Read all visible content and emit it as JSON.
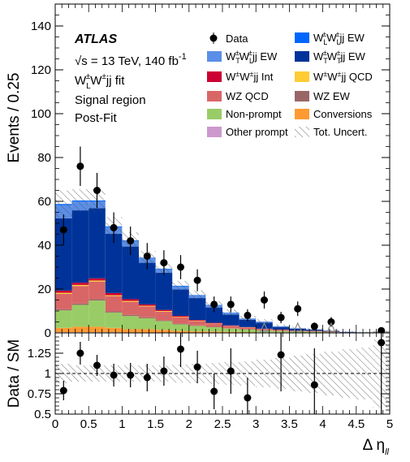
{
  "chart_data": [
    {
      "type": "bar",
      "stacked": true,
      "panel": "main",
      "ylabel": "Events / 0.25",
      "xlim": [
        0,
        5
      ],
      "ylim": [
        0,
        150
      ],
      "y_ticks": [
        0,
        20,
        40,
        60,
        80,
        100,
        120,
        140
      ],
      "bin_edges": [
        0,
        0.25,
        0.5,
        0.75,
        1.0,
        1.25,
        1.5,
        1.75,
        2.0,
        2.25,
        2.5,
        2.75,
        3.0,
        3.25,
        3.5,
        3.75,
        4.0,
        4.25,
        4.5,
        4.75,
        5.0
      ],
      "series": [
        {
          "name": "Other prompt",
          "color": "#cc99cc",
          "values": [
            0.3,
            0.3,
            0.3,
            0.3,
            0.2,
            0.2,
            0.2,
            0.1,
            0.1,
            0.1,
            0.1,
            0.05,
            0.05,
            0.05,
            0.05,
            0.05,
            0,
            0,
            0,
            0.1
          ]
        },
        {
          "name": "Conversions",
          "color": "#ff9a33",
          "values": [
            2,
            2.5,
            2.5,
            2,
            1.5,
            1.5,
            1.2,
            0.8,
            0.6,
            0.5,
            0.4,
            0.3,
            0.2,
            0.2,
            0.1,
            0.1,
            0.1,
            0.05,
            0,
            0.1
          ]
        },
        {
          "name": "Non-prompt",
          "color": "#99cc66",
          "values": [
            8,
            10,
            12,
            7,
            6,
            5,
            4,
            3,
            2.5,
            2,
            1.5,
            1.2,
            0.8,
            0.6,
            0.4,
            0.4,
            0.2,
            0.1,
            0.1,
            0.2
          ]
        },
        {
          "name": "WZ EW",
          "color": "#996666",
          "values": [
            0.5,
            0.6,
            0.6,
            0.5,
            0.5,
            0.4,
            0.3,
            0.3,
            0.2,
            0.2,
            0.1,
            0.1,
            0.1,
            0.1,
            0.1,
            0.05,
            0.05,
            0,
            0,
            0
          ]
        },
        {
          "name": "WZ QCD",
          "color": "#d96666",
          "values": [
            7,
            8,
            8,
            7,
            6,
            5,
            4,
            3,
            2,
            1.5,
            1,
            0.8,
            0.6,
            0.4,
            0.3,
            0.3,
            0.2,
            0.1,
            0.1,
            0.1
          ]
        },
        {
          "name": "W±W±jj QCD",
          "color": "#ffcc33",
          "values": [
            0.5,
            0.5,
            0.5,
            0.4,
            0.4,
            0.3,
            0.3,
            0.2,
            0.2,
            0.1,
            0.1,
            0.1,
            0.05,
            0.05,
            0.05,
            0,
            0,
            0,
            0,
            0
          ]
        },
        {
          "name": "W±W±jj Int",
          "color": "#cc0033",
          "values": [
            1,
            1,
            1,
            1,
            0.8,
            0.6,
            0.5,
            0.4,
            0.3,
            0.2,
            0.2,
            0.1,
            0.1,
            0.1,
            0.05,
            0.05,
            0.05,
            0,
            0,
            0
          ]
        },
        {
          "name": "WT±WT±jj EW",
          "color": "#003399",
          "values": [
            33,
            33,
            32,
            27,
            24,
            19,
            17,
            12,
            10,
            7,
            5,
            3.3,
            2.8,
            1.2,
            0.8,
            0.5,
            0.3,
            0.2,
            0.05,
            0.1
          ]
        },
        {
          "name": "WL±WT±jj EW",
          "color": "#5a8ee8",
          "values": [
            6,
            4,
            3,
            3,
            2.5,
            2,
            1.6,
            1.5,
            1.3,
            1.1,
            0.8,
            0.6,
            0.4,
            0.3,
            0.2,
            0.15,
            0.1,
            0.05,
            0,
            0
          ]
        },
        {
          "name": "WL±WL±jj EW",
          "color": "#0066ff",
          "values": [
            0.5,
            0.5,
            0.5,
            0.4,
            0.3,
            0.3,
            0.2,
            0.2,
            0.1,
            0.1,
            0.1,
            0.05,
            0.05,
            0.05,
            0.05,
            0,
            0,
            0,
            0,
            0
          ]
        }
      ],
      "data_points": {
        "name": "Data",
        "x": [
          0.125,
          0.375,
          0.625,
          0.875,
          1.125,
          1.375,
          1.625,
          1.875,
          2.125,
          2.375,
          2.625,
          2.875,
          3.125,
          3.375,
          3.625,
          3.875,
          4.125,
          4.875
        ],
        "y": [
          47,
          76,
          65,
          48,
          42,
          35,
          32,
          30,
          24,
          13,
          13,
          8,
          15,
          7,
          11,
          3,
          5,
          1
        ],
        "yerr": [
          7,
          9,
          8,
          7,
          6.5,
          6,
          5.7,
          5.5,
          5,
          3.6,
          3.6,
          2.8,
          3.9,
          2.6,
          3.3,
          1.7,
          2.2,
          1
        ]
      },
      "arrows_x": [
        3.125,
        3.625,
        4.125
      ],
      "legend_title": "Data",
      "uncertainty_label": "Tot. Uncert.",
      "uncertainty_frac": [
        0.1,
        0.08,
        0.08,
        0.08,
        0.08,
        0.08,
        0.08,
        0.09,
        0.1,
        0.11,
        0.12,
        0.13,
        0.15,
        0.17,
        0.2,
        0.22,
        0.25,
        0.28,
        0.3,
        0.4
      ],
      "annotations": {
        "experiment": "ATLAS",
        "energy_prefix": "√s = 13 TeV, 140 fb",
        "energy_sup": "-1",
        "fit_W1": "W",
        "fit_sub1": "L",
        "fit_sup1": "±",
        "fit_W2": "W",
        "fit_sup2": "±",
        "fit_rest": "jj fit",
        "region": "Signal region",
        "status": "Post-Fit"
      }
    },
    {
      "type": "scatter",
      "panel": "ratio",
      "ylabel": "Data / SM",
      "xlabel": "Δ η",
      "xlabel_sub": "ll",
      "xlim": [
        0,
        5
      ],
      "ylim": [
        0.5,
        1.5
      ],
      "y_ticks": [
        0.5,
        0.75,
        1,
        1.25
      ],
      "y_tick_labels": [
        "0.5",
        "0.75",
        "1",
        "1.25"
      ],
      "x_ticks": [
        0,
        0.5,
        1,
        1.5,
        2,
        2.5,
        3,
        3.5,
        4,
        4.5,
        5
      ],
      "x_tick_labels": [
        "0",
        "0.5",
        "1",
        "1.5",
        "2",
        "2.5",
        "3",
        "3.5",
        "4",
        "4.5",
        "5"
      ],
      "x": [
        0.125,
        0.375,
        0.625,
        0.875,
        1.125,
        1.375,
        1.625,
        1.875,
        2.125,
        2.375,
        2.625,
        2.875,
        3.375,
        3.875,
        4.875
      ],
      "y": [
        0.79,
        1.25,
        1.1,
        0.98,
        0.98,
        0.95,
        1.03,
        1.3,
        1.08,
        0.78,
        1.03,
        0.7,
        1.23,
        0.86,
        1.38
      ],
      "yerr": [
        0.12,
        0.14,
        0.13,
        0.14,
        0.15,
        0.17,
        0.18,
        0.22,
        0.2,
        0.22,
        0.28,
        0.25,
        0.45,
        0.45,
        1.0
      ],
      "reference_line": 1
    }
  ]
}
